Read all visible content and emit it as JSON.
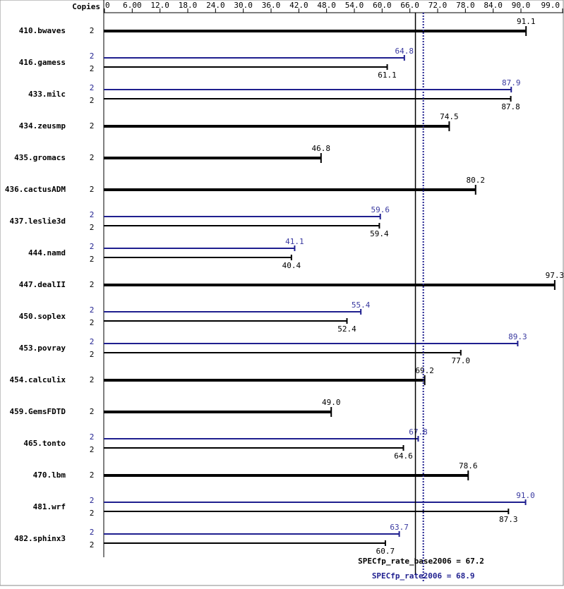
{
  "chart_data": {
    "type": "bar",
    "orientation": "horizontal",
    "copies_header": "Copies",
    "categories": [
      "410.bwaves",
      "416.gamess",
      "433.milc",
      "434.zeusmp",
      "435.gromacs",
      "436.cactusADM",
      "437.leslie3d",
      "444.namd",
      "447.dealII",
      "450.soplex",
      "453.povray",
      "454.calculix",
      "459.GemsFDTD",
      "465.tonto",
      "470.lbm",
      "481.wrf",
      "482.sphinx3"
    ],
    "xlim": [
      0,
      99
    ],
    "xticks": [
      0,
      {
        "value": 6,
        "label": "6.00"
      },
      {
        "value": 12,
        "label": "12.0"
      },
      {
        "value": 18,
        "label": "18.0"
      },
      {
        "value": 24,
        "label": "24.0"
      },
      {
        "value": 30,
        "label": "30.0"
      },
      {
        "value": 36,
        "label": "36.0"
      },
      {
        "value": 42,
        "label": "42.0"
      },
      {
        "value": 48,
        "label": "48.0"
      },
      {
        "value": 54,
        "label": "54.0"
      },
      {
        "value": 60,
        "label": "60.0"
      },
      {
        "value": 66,
        "label": "66.0"
      },
      {
        "value": 72,
        "label": "72.0"
      },
      {
        "value": 78,
        "label": "78.0"
      },
      {
        "value": 84,
        "label": "84.0"
      },
      {
        "value": 90,
        "label": "90.0"
      },
      {
        "value": 99,
        "label": "99.0"
      }
    ],
    "series": [
      {
        "color": "#000000",
        "copies": [
          2,
          2,
          2,
          2,
          2,
          2,
          2,
          2,
          2,
          2,
          2,
          2,
          2,
          2,
          2,
          2,
          2
        ],
        "values": [
          91.1,
          61.1,
          87.8,
          74.5,
          46.8,
          80.2,
          59.4,
          40.4,
          97.3,
          52.4,
          77,
          69.2,
          49,
          64.6,
          78.6,
          87.3,
          60.7
        ],
        "value_labels": [
          "91.1",
          "61.1",
          "87.8",
          "74.5",
          "46.8",
          "80.2",
          "59.4",
          "40.4",
          "97.3",
          "52.4",
          "77.0",
          "69.2",
          "49.0",
          "64.6",
          "78.6",
          "87.3",
          "60.7"
        ]
      },
      {
        "color": "#1f1f8f",
        "copies": [
          null,
          2,
          2,
          null,
          null,
          null,
          2,
          2,
          null,
          2,
          2,
          null,
          null,
          2,
          null,
          2,
          2
        ],
        "values": [
          null,
          64.8,
          87.9,
          null,
          null,
          null,
          59.6,
          41.1,
          null,
          55.4,
          89.3,
          null,
          null,
          67.8,
          null,
          91,
          63.7
        ],
        "value_labels": [
          null,
          "64.8",
          "87.9",
          null,
          null,
          null,
          "59.6",
          "41.1",
          null,
          "55.4",
          "89.3",
          null,
          null,
          "67.8",
          null,
          "91.0",
          "63.7"
        ]
      }
    ],
    "reference_lines": [
      {
        "label": "SPECfp_rate_base2006 = 67.2",
        "value": 67.2,
        "color": "#000000",
        "style": "solid"
      },
      {
        "label": "SPECfp_rate2006 = 68.9",
        "value": 68.9,
        "color": "#1f1f8f",
        "style": "dotted"
      }
    ]
  }
}
